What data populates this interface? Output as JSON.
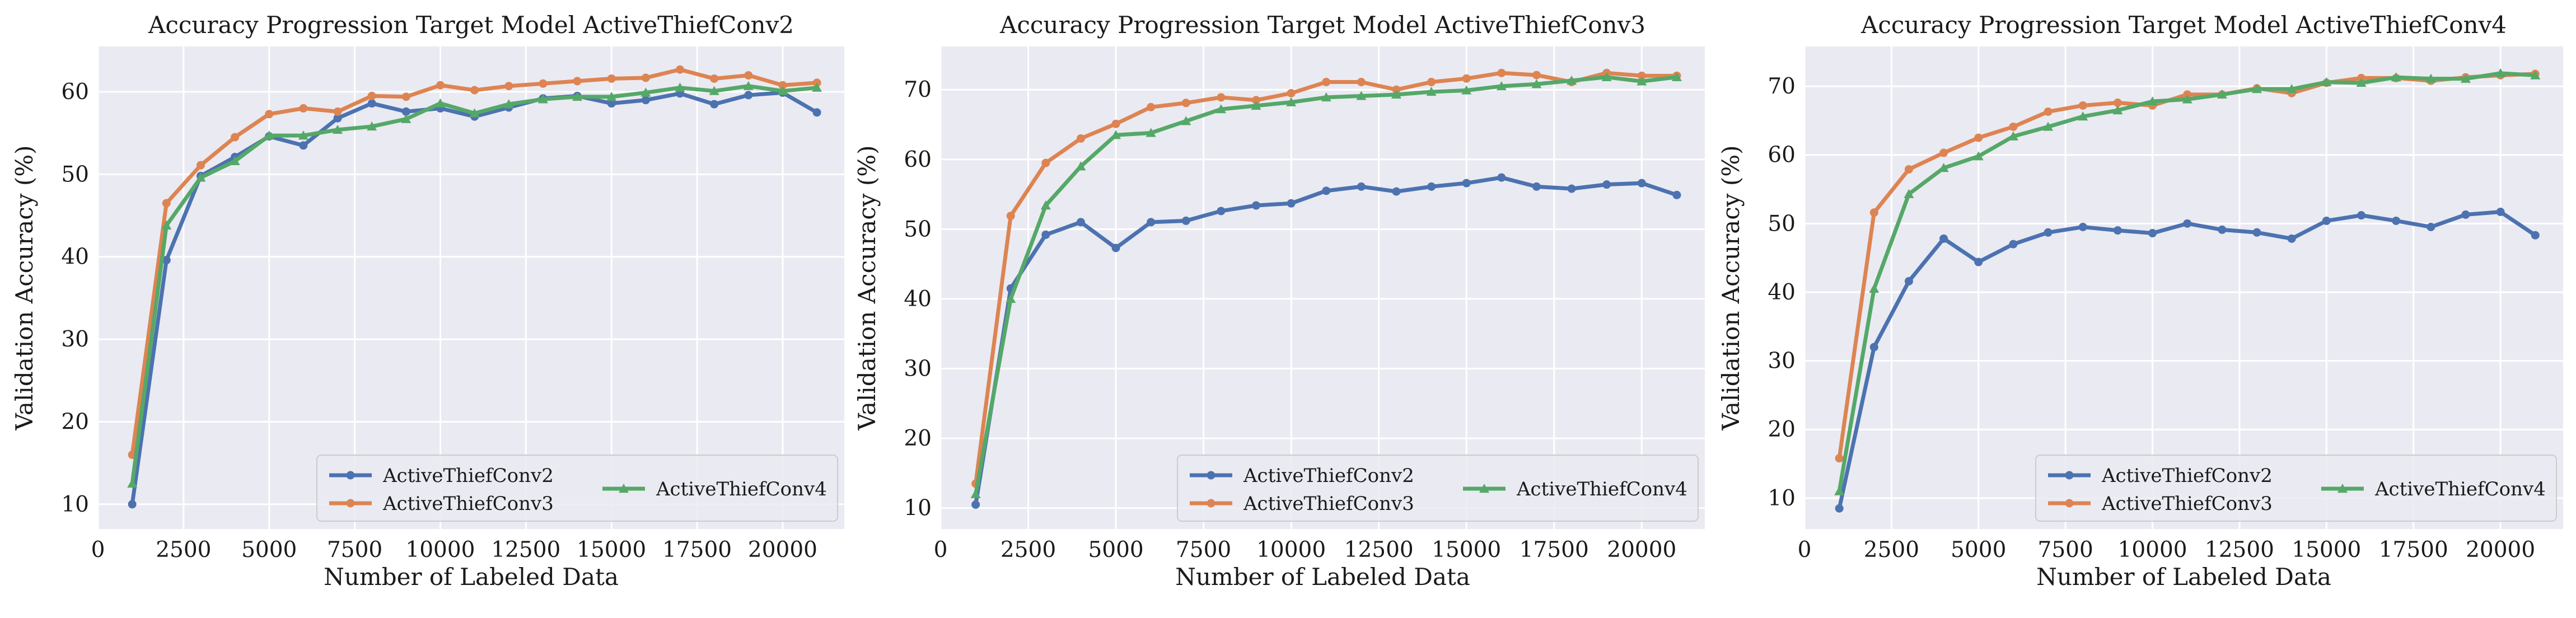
{
  "chart_data": [
    {
      "type": "line",
      "title": "Accuracy Progression Target Model ActiveThiefConv2",
      "xlabel": "Number of Labeled Data",
      "ylabel": "Validation Accuracy (%)",
      "xlim": [
        0,
        21800
      ],
      "ylim": [
        7,
        65.5
      ],
      "xticks": [
        0,
        2500,
        5000,
        7500,
        10000,
        12500,
        15000,
        17500,
        20000
      ],
      "yticks": [
        10,
        20,
        30,
        40,
        50,
        60
      ],
      "grid": true,
      "legend": "lower-right",
      "x": [
        1000,
        2000,
        3000,
        4000,
        5000,
        6000,
        7000,
        8000,
        9000,
        10000,
        11000,
        12000,
        13000,
        14000,
        15000,
        16000,
        17000,
        18000,
        19000,
        20000,
        21000
      ],
      "series": [
        {
          "name": "ActiveThiefConv2",
          "color": "#4c72b0",
          "marker": "circle",
          "values": [
            10.0,
            39.6,
            49.8,
            52.1,
            54.6,
            53.5,
            56.8,
            58.6,
            57.6,
            58.0,
            57.0,
            58.1,
            59.2,
            59.5,
            58.6,
            59.0,
            59.8,
            58.5,
            59.6,
            59.9,
            57.5
          ]
        },
        {
          "name": "ActiveThiefConv3",
          "color": "#dd8452",
          "marker": "circle",
          "values": [
            16.0,
            46.5,
            51.1,
            54.5,
            57.3,
            58.0,
            57.6,
            59.5,
            59.4,
            60.8,
            60.2,
            60.7,
            61.0,
            61.3,
            61.6,
            61.7,
            62.7,
            61.6,
            62.0,
            60.8,
            61.1
          ]
        },
        {
          "name": "ActiveThiefConv4",
          "color": "#55a868",
          "marker": "triangle",
          "values": [
            12.5,
            43.8,
            49.6,
            51.6,
            54.7,
            54.7,
            55.4,
            55.8,
            56.7,
            58.6,
            57.4,
            58.5,
            59.1,
            59.4,
            59.4,
            59.9,
            60.5,
            60.1,
            60.7,
            60.1,
            60.5
          ]
        }
      ]
    },
    {
      "type": "line",
      "title": "Accuracy Progression Target Model ActiveThiefConv3",
      "xlabel": "Number of Labeled Data",
      "ylabel": "Validation Accuracy (%)",
      "xlim": [
        0,
        21800
      ],
      "ylim": [
        7,
        76.2
      ],
      "xticks": [
        0,
        2500,
        5000,
        7500,
        10000,
        12500,
        15000,
        17500,
        20000
      ],
      "yticks": [
        10,
        20,
        30,
        40,
        50,
        60,
        70
      ],
      "grid": true,
      "legend": "lower-right",
      "x": [
        1000,
        2000,
        3000,
        4000,
        5000,
        6000,
        7000,
        8000,
        9000,
        10000,
        11000,
        12000,
        13000,
        14000,
        15000,
        16000,
        17000,
        18000,
        19000,
        20000,
        21000
      ],
      "series": [
        {
          "name": "ActiveThiefConv2",
          "color": "#4c72b0",
          "marker": "circle",
          "values": [
            10.5,
            41.5,
            49.2,
            51.0,
            47.3,
            51.0,
            51.2,
            52.6,
            53.4,
            53.7,
            55.5,
            56.1,
            55.4,
            56.1,
            56.6,
            57.4,
            56.1,
            55.8,
            56.4,
            56.6,
            54.9
          ]
        },
        {
          "name": "ActiveThiefConv3",
          "color": "#dd8452",
          "marker": "circle",
          "values": [
            13.5,
            51.9,
            59.5,
            63.0,
            65.1,
            67.5,
            68.1,
            68.9,
            68.5,
            69.5,
            71.1,
            71.1,
            70.0,
            71.1,
            71.6,
            72.4,
            72.1,
            71.1,
            72.4,
            72.0,
            72.0
          ]
        },
        {
          "name": "ActiveThiefConv4",
          "color": "#55a868",
          "marker": "triangle",
          "values": [
            12.0,
            40.0,
            53.4,
            59.0,
            63.5,
            63.8,
            65.5,
            67.2,
            67.7,
            68.2,
            68.9,
            69.1,
            69.3,
            69.7,
            69.9,
            70.5,
            70.8,
            71.3,
            71.8,
            71.2,
            71.8
          ]
        }
      ]
    },
    {
      "type": "line",
      "title": "Accuracy Progression Target Model ActiveThiefConv4",
      "xlabel": "Number of Labeled Data",
      "ylabel": "Validation Accuracy (%)",
      "xlim": [
        0,
        21800
      ],
      "ylim": [
        5.5,
        75.8
      ],
      "xticks": [
        0,
        2500,
        5000,
        7500,
        10000,
        12500,
        15000,
        17500,
        20000
      ],
      "yticks": [
        10,
        20,
        30,
        40,
        50,
        60,
        70
      ],
      "grid": true,
      "legend": "lower-right",
      "x": [
        1000,
        2000,
        3000,
        4000,
        5000,
        6000,
        7000,
        8000,
        9000,
        10000,
        11000,
        12000,
        13000,
        14000,
        15000,
        16000,
        17000,
        18000,
        19000,
        20000,
        21000
      ],
      "series": [
        {
          "name": "ActiveThiefConv2",
          "color": "#4c72b0",
          "marker": "circle",
          "values": [
            8.5,
            32.0,
            41.6,
            47.8,
            44.4,
            47.0,
            48.7,
            49.5,
            49.0,
            48.6,
            50.0,
            49.1,
            48.7,
            47.8,
            50.4,
            51.2,
            50.4,
            49.5,
            51.3,
            51.7,
            48.3
          ]
        },
        {
          "name": "ActiveThiefConv3",
          "color": "#dd8452",
          "marker": "circle",
          "values": [
            15.8,
            51.6,
            57.9,
            60.3,
            62.5,
            64.1,
            66.3,
            67.2,
            67.6,
            67.2,
            68.8,
            68.8,
            69.7,
            69.0,
            70.5,
            71.2,
            71.2,
            70.8,
            71.3,
            71.6,
            71.8
          ]
        },
        {
          "name": "ActiveThiefConv4",
          "color": "#55a868",
          "marker": "triangle",
          "values": [
            11.0,
            40.5,
            54.3,
            58.1,
            59.8,
            62.7,
            64.1,
            65.6,
            66.5,
            67.8,
            68.1,
            68.8,
            69.6,
            69.6,
            70.6,
            70.5,
            71.3,
            71.1,
            71.1,
            71.9,
            71.6
          ]
        }
      ]
    }
  ]
}
